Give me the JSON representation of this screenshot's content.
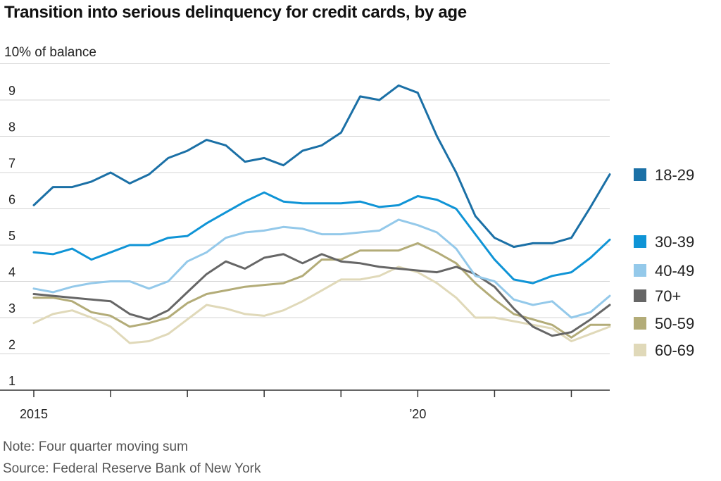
{
  "header": {
    "title": "Transition into serious delinquency for credit cards, by age",
    "unit_label": "10% of balance"
  },
  "footer": {
    "note": "Note: Four quarter moving sum",
    "source": "Source: Federal Reserve Bank of New York"
  },
  "chart_data": {
    "type": "line",
    "title": "Transition into serious delinquency for credit cards, by age",
    "ylabel": "10% of balance",
    "xlabel": "",
    "ylim": [
      1,
      10
    ],
    "xlim": [
      2015.0,
      2022.5
    ],
    "yticks": [
      1,
      2,
      3,
      4,
      5,
      6,
      7,
      8,
      9
    ],
    "ytick_labels": [
      "1",
      "2",
      "3",
      "4",
      "5",
      "6",
      "7",
      "8",
      "9"
    ],
    "xticks": [
      2015,
      2016,
      2017,
      2018,
      2019,
      2020,
      2021,
      2022
    ],
    "xtick_labels": [
      {
        "x": 2015,
        "label": "2015"
      },
      {
        "x": 2020,
        "label": "’20"
      }
    ],
    "grid": true,
    "legend_placement": "right",
    "x": [
      2015.0,
      2015.25,
      2015.5,
      2015.75,
      2016.0,
      2016.25,
      2016.5,
      2016.75,
      2017.0,
      2017.25,
      2017.5,
      2017.75,
      2018.0,
      2018.25,
      2018.5,
      2018.75,
      2019.0,
      2019.25,
      2019.5,
      2019.75,
      2020.0,
      2020.25,
      2020.5,
      2020.75,
      2021.0,
      2021.25,
      2021.5,
      2021.75,
      2022.0,
      2022.25,
      2022.5
    ],
    "series": [
      {
        "name": "18-29",
        "color": "#1b70a6",
        "values": [
          6.1,
          6.6,
          6.6,
          6.75,
          7.0,
          6.7,
          6.95,
          7.4,
          7.6,
          7.9,
          7.75,
          7.3,
          7.4,
          7.2,
          7.6,
          7.75,
          8.1,
          9.1,
          9.0,
          9.4,
          9.2,
          8.0,
          7.0,
          5.8,
          5.2,
          4.95,
          5.05,
          5.05,
          5.2,
          6.05,
          6.95
        ]
      },
      {
        "name": "30-39",
        "color": "#0f94d6",
        "values": [
          4.8,
          4.75,
          4.9,
          4.6,
          4.8,
          5.0,
          5.0,
          5.2,
          5.25,
          5.6,
          5.9,
          6.2,
          6.45,
          6.2,
          6.15,
          6.15,
          6.15,
          6.2,
          6.05,
          6.1,
          6.35,
          6.25,
          6.0,
          5.3,
          4.6,
          4.05,
          3.95,
          4.15,
          4.25,
          4.65,
          5.15
        ]
      },
      {
        "name": "40-49",
        "color": "#94c9ea",
        "values": [
          3.8,
          3.7,
          3.85,
          3.95,
          4.0,
          4.0,
          3.8,
          4.0,
          4.55,
          4.8,
          5.2,
          5.35,
          5.4,
          5.5,
          5.45,
          5.3,
          5.3,
          5.35,
          5.4,
          5.7,
          5.55,
          5.35,
          4.9,
          4.15,
          4.0,
          3.5,
          3.35,
          3.45,
          3.0,
          3.15,
          3.6
        ]
      },
      {
        "name": "70+",
        "color": "#666666",
        "values": [
          3.65,
          3.6,
          3.55,
          3.5,
          3.45,
          3.1,
          2.95,
          3.2,
          3.7,
          4.2,
          4.55,
          4.35,
          4.65,
          4.75,
          4.5,
          4.75,
          4.55,
          4.5,
          4.4,
          4.35,
          4.3,
          4.25,
          4.4,
          4.2,
          3.85,
          3.25,
          2.75,
          2.5,
          2.6,
          2.95,
          3.35
        ]
      },
      {
        "name": "50-59",
        "color": "#b3ac78",
        "values": [
          3.55,
          3.55,
          3.45,
          3.15,
          3.05,
          2.75,
          2.85,
          3.0,
          3.4,
          3.65,
          3.75,
          3.85,
          3.9,
          3.95,
          4.15,
          4.6,
          4.6,
          4.85,
          4.85,
          4.85,
          5.05,
          4.8,
          4.5,
          3.95,
          3.5,
          3.1,
          2.95,
          2.8,
          2.45,
          2.8,
          2.8
        ]
      },
      {
        "name": "60-69",
        "color": "#e0d9b9",
        "values": [
          2.85,
          3.1,
          3.2,
          3.0,
          2.75,
          2.3,
          2.35,
          2.55,
          2.95,
          3.35,
          3.25,
          3.1,
          3.05,
          3.2,
          3.45,
          3.75,
          4.05,
          4.05,
          4.15,
          4.4,
          4.25,
          3.95,
          3.55,
          3.0,
          3.0,
          2.9,
          2.8,
          2.7,
          2.35,
          2.55,
          2.75
        ]
      }
    ]
  }
}
